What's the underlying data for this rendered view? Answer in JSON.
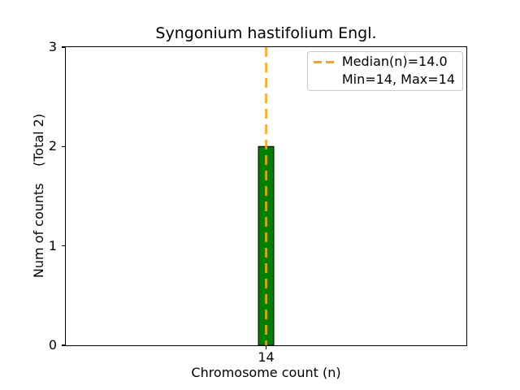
{
  "figure": {
    "background": "#ffffff",
    "text_color": "#000000"
  },
  "chart_data": {
    "type": "bar",
    "title": "Syngonium hastifolium Engl.",
    "xlabel": "Chromosome count (n)",
    "ylabel": "Num of counts    (Total 2)",
    "categories": [
      "14"
    ],
    "values": [
      2
    ],
    "total_counts": 2,
    "ylim": [
      0,
      3
    ],
    "yticks": [
      "0",
      "1",
      "2",
      "3"
    ],
    "grid": "off",
    "bar_color": "#008000",
    "bar_edge_color": "#000000",
    "median_line": {
      "value": 14.0,
      "color": "#FFA500",
      "style": "dashed"
    },
    "stats": {
      "median": "14.0",
      "min": "14",
      "max": "14"
    },
    "legend": {
      "position": "upper-right",
      "entries": [
        {
          "label": "Median(n)=14.0",
          "symbol": "dashed-line",
          "color": "#FFA500"
        },
        {
          "label": "Min=14, Max=14",
          "symbol": "none",
          "color": ""
        }
      ]
    }
  }
}
